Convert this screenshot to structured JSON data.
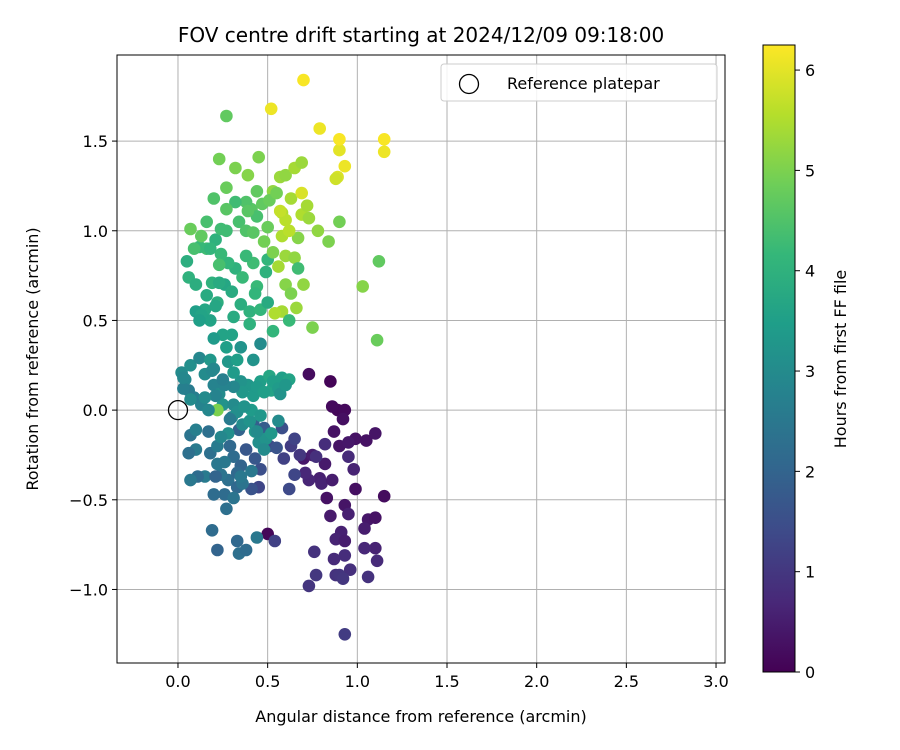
{
  "chart_data": {
    "type": "scatter",
    "title": "FOV centre drift starting at 2024/12/09 09:18:00",
    "xlabel": "Angular distance from reference (arcmin)",
    "ylabel": "Rotation from reference (arcmin)",
    "xlim": [
      -0.34,
      3.05
    ],
    "ylim": [
      -1.41,
      1.98
    ],
    "xticks": [
      0.0,
      0.5,
      1.0,
      1.5,
      2.0,
      2.5,
      3.0
    ],
    "xtick_labels": [
      "0.0",
      "0.5",
      "1.0",
      "1.5",
      "2.0",
      "2.5",
      "3.0"
    ],
    "yticks": [
      -1.0,
      -0.5,
      0.0,
      0.5,
      1.0,
      1.5
    ],
    "ytick_labels": [
      "−1.0",
      "−0.5",
      "0.0",
      "0.5",
      "1.0",
      "1.5"
    ],
    "grid": true,
    "legend": {
      "position": "top-right",
      "entries": [
        "Reference platepar"
      ]
    },
    "reference_point": {
      "name": "Reference platepar",
      "x": 0.0,
      "y": 0.0
    },
    "colorbar": {
      "label": "Hours from first FF file",
      "colormap": "viridis",
      "range": [
        0,
        6.25
      ],
      "ticks": [
        0,
        1,
        2,
        3,
        4,
        5,
        6
      ],
      "tick_labels": [
        "0",
        "1",
        "2",
        "3",
        "4",
        "5",
        "6"
      ],
      "colors": [
        "#440154",
        "#482878",
        "#3e4a89",
        "#31688e",
        "#26828e",
        "#1f9e89",
        "#35b779",
        "#6ece58",
        "#b5de2b",
        "#fde725"
      ]
    },
    "points": [
      [
        0.85,
        0.16,
        0.05
      ],
      [
        0.89,
        0.0,
        0.1
      ],
      [
        0.93,
        0.0,
        0.15
      ],
      [
        0.73,
        0.2,
        0.2
      ],
      [
        0.86,
        0.02,
        0.15
      ],
      [
        0.92,
        -0.05,
        0.25
      ],
      [
        0.99,
        -0.16,
        0.3
      ],
      [
        1.05,
        -0.17,
        0.3
      ],
      [
        1.1,
        -0.13,
        0.35
      ],
      [
        0.87,
        -0.12,
        0.3
      ],
      [
        0.9,
        -0.2,
        0.35
      ],
      [
        0.95,
        -0.18,
        0.4
      ],
      [
        1.15,
        -0.48,
        0.2
      ],
      [
        0.83,
        -0.49,
        0.3
      ],
      [
        0.93,
        -0.53,
        0.35
      ],
      [
        0.99,
        -0.44,
        0.25
      ],
      [
        1.06,
        -0.61,
        0.4
      ],
      [
        1.1,
        -0.6,
        0.3
      ],
      [
        0.85,
        -0.59,
        0.45
      ],
      [
        1.04,
        -0.66,
        0.5
      ],
      [
        0.91,
        -0.68,
        0.55
      ],
      [
        0.88,
        -0.72,
        0.6
      ],
      [
        0.93,
        -0.73,
        0.5
      ],
      [
        0.95,
        -0.58,
        0.55
      ],
      [
        1.1,
        -0.77,
        0.6
      ],
      [
        1.04,
        -0.77,
        0.7
      ],
      [
        1.11,
        -0.84,
        0.75
      ],
      [
        0.93,
        -0.81,
        0.8
      ],
      [
        0.87,
        -0.83,
        0.75
      ],
      [
        0.96,
        -0.89,
        0.85
      ],
      [
        0.88,
        -0.92,
        0.9
      ],
      [
        0.9,
        -0.92,
        0.95
      ],
      [
        1.06,
        -0.93,
        0.9
      ],
      [
        0.92,
        -0.94,
        1.0
      ],
      [
        0.77,
        -0.92,
        1.0
      ],
      [
        0.73,
        -0.98,
        0.95
      ],
      [
        0.76,
        -0.79,
        0.9
      ],
      [
        0.93,
        -1.25,
        1.1
      ],
      [
        0.7,
        -0.27,
        0.4
      ],
      [
        0.75,
        -0.25,
        0.5
      ],
      [
        0.82,
        -0.3,
        0.45
      ],
      [
        0.79,
        -0.38,
        0.55
      ],
      [
        0.8,
        -0.41,
        0.6
      ],
      [
        0.86,
        -0.39,
        0.5
      ],
      [
        0.73,
        -0.39,
        0.65
      ],
      [
        0.71,
        -0.35,
        0.7
      ],
      [
        0.95,
        -0.26,
        0.75
      ],
      [
        0.98,
        -0.33,
        0.6
      ],
      [
        0.82,
        -0.19,
        0.8
      ],
      [
        0.77,
        -0.26,
        0.85
      ],
      [
        0.5,
        -0.69,
        0.1
      ],
      [
        0.54,
        -0.73,
        1.2
      ],
      [
        0.45,
        -0.43,
        1.3
      ],
      [
        0.62,
        -0.44,
        1.4
      ],
      [
        0.65,
        -0.36,
        1.3
      ],
      [
        0.59,
        -0.27,
        1.2
      ],
      [
        0.63,
        -0.2,
        1.1
      ],
      [
        0.68,
        -0.25,
        1.0
      ],
      [
        0.65,
        -0.16,
        1.25
      ],
      [
        0.58,
        -0.1,
        1.5
      ],
      [
        0.51,
        -0.2,
        1.4
      ],
      [
        0.55,
        -0.21,
        1.6
      ],
      [
        0.46,
        -0.33,
        1.5
      ],
      [
        0.41,
        -0.44,
        1.6
      ],
      [
        0.43,
        -0.27,
        1.7
      ],
      [
        0.48,
        -0.1,
        1.8
      ],
      [
        0.42,
        -0.07,
        1.9
      ],
      [
        0.34,
        -0.11,
        2.0
      ],
      [
        0.38,
        -0.22,
        1.7
      ],
      [
        0.29,
        -0.2,
        2.1
      ],
      [
        0.31,
        -0.26,
        2.2
      ],
      [
        0.35,
        -0.31,
        2.0
      ],
      [
        0.28,
        -0.39,
        2.3
      ],
      [
        0.26,
        -0.47,
        2.2
      ],
      [
        0.33,
        -0.43,
        2.1
      ],
      [
        0.31,
        -0.49,
        2.4
      ],
      [
        0.27,
        -0.55,
        2.3
      ],
      [
        0.2,
        -0.47,
        2.2
      ],
      [
        0.24,
        -0.36,
        2.4
      ],
      [
        0.22,
        -0.3,
        2.5
      ],
      [
        0.18,
        -0.24,
        2.3
      ],
      [
        0.15,
        -0.37,
        2.6
      ],
      [
        0.11,
        -0.37,
        2.2
      ],
      [
        0.07,
        -0.39,
        2.5
      ],
      [
        0.1,
        -0.22,
        2.6
      ],
      [
        0.07,
        -0.14,
        2.4
      ],
      [
        0.1,
        -0.11,
        2.7
      ],
      [
        0.13,
        0.03,
        2.8
      ],
      [
        0.09,
        0.07,
        2.7
      ],
      [
        0.06,
        0.11,
        2.6
      ],
      [
        0.04,
        0.17,
        2.9
      ],
      [
        0.02,
        0.21,
        3.0
      ],
      [
        0.07,
        0.25,
        3.1
      ],
      [
        0.12,
        0.29,
        2.9
      ],
      [
        0.15,
        0.2,
        3.0
      ],
      [
        0.2,
        0.14,
        2.8
      ],
      [
        0.23,
        0.09,
        3.0
      ],
      [
        0.25,
        0.03,
        3.2
      ],
      [
        0.3,
        -0.04,
        2.9
      ],
      [
        0.31,
        0.03,
        3.0
      ],
      [
        0.33,
        -0.01,
        3.1
      ],
      [
        0.36,
        -0.08,
        3.0
      ],
      [
        0.4,
        -0.06,
        3.2
      ],
      [
        0.43,
        -0.12,
        3.3
      ],
      [
        0.45,
        -0.18,
        3.1
      ],
      [
        0.49,
        -0.16,
        3.2
      ],
      [
        0.52,
        -0.13,
        3.3
      ],
      [
        0.56,
        -0.06,
        3.0
      ],
      [
        0.39,
        0.14,
        3.3
      ],
      [
        0.42,
        0.08,
        3.4
      ],
      [
        0.46,
        0.16,
        3.5
      ],
      [
        0.52,
        0.11,
        3.6
      ],
      [
        0.55,
        0.15,
        3.4
      ],
      [
        0.58,
        0.18,
        3.5
      ],
      [
        0.62,
        0.17,
        3.6
      ],
      [
        0.35,
        0.16,
        3.2
      ],
      [
        0.31,
        0.21,
        3.4
      ],
      [
        0.28,
        0.27,
        3.3
      ],
      [
        0.27,
        0.35,
        3.5
      ],
      [
        0.25,
        0.42,
        3.6
      ],
      [
        0.2,
        0.4,
        3.4
      ],
      [
        0.18,
        0.5,
        3.6
      ],
      [
        0.15,
        0.56,
        3.7
      ],
      [
        0.1,
        0.55,
        3.5
      ],
      [
        0.16,
        0.64,
        3.8
      ],
      [
        0.22,
        0.6,
        3.9
      ],
      [
        0.26,
        0.7,
        3.7
      ],
      [
        0.3,
        0.66,
        3.8
      ],
      [
        0.35,
        0.59,
        3.9
      ],
      [
        0.4,
        0.55,
        4.0
      ],
      [
        0.46,
        0.56,
        4.1
      ],
      [
        0.44,
        0.69,
        4.2
      ],
      [
        0.49,
        0.77,
        4.0
      ],
      [
        0.5,
        0.84,
        4.1
      ],
      [
        0.42,
        0.82,
        4.3
      ],
      [
        0.38,
        0.86,
        4.2
      ],
      [
        0.32,
        0.79,
        4.0
      ],
      [
        0.28,
        0.82,
        4.1
      ],
      [
        0.24,
        0.87,
        4.2
      ],
      [
        0.21,
        0.95,
        4.0
      ],
      [
        0.16,
        0.9,
        4.3
      ],
      [
        0.12,
        0.91,
        4.2
      ],
      [
        0.09,
        0.9,
        4.4
      ],
      [
        0.06,
        0.74,
        4.0
      ],
      [
        0.05,
        0.83,
        3.9
      ],
      [
        0.27,
        1.0,
        4.3
      ],
      [
        0.34,
        1.05,
        4.4
      ],
      [
        0.38,
        1.0,
        4.5
      ],
      [
        0.41,
        1.12,
        4.6
      ],
      [
        0.44,
        1.08,
        4.4
      ],
      [
        0.47,
        1.15,
        4.7
      ],
      [
        0.38,
        1.16,
        4.5
      ],
      [
        0.32,
        1.16,
        4.3
      ],
      [
        0.27,
        1.12,
        4.6
      ],
      [
        0.2,
        1.18,
        4.5
      ],
      [
        0.16,
        1.05,
        4.4
      ],
      [
        0.13,
        0.97,
        4.7
      ],
      [
        0.07,
        1.01,
        4.8
      ],
      [
        0.23,
        1.4,
        4.9
      ],
      [
        0.32,
        1.35,
        5.0
      ],
      [
        0.39,
        1.31,
        5.1
      ],
      [
        0.45,
        1.41,
        5.0
      ],
      [
        0.27,
        1.24,
        4.8
      ],
      [
        0.27,
        1.64,
        4.7
      ],
      [
        0.53,
        1.22,
        5.2
      ],
      [
        0.57,
        1.3,
        5.3
      ],
      [
        0.6,
        1.31,
        5.2
      ],
      [
        0.65,
        1.35,
        5.4
      ],
      [
        0.69,
        1.38,
        5.3
      ],
      [
        0.63,
        1.18,
        5.4
      ],
      [
        0.58,
        1.1,
        5.5
      ],
      [
        0.6,
        1.06,
        5.6
      ],
      [
        0.69,
        1.09,
        5.5
      ],
      [
        0.72,
        1.14,
        5.4
      ],
      [
        0.73,
        1.07,
        5.3
      ],
      [
        0.78,
        1.0,
        5.2
      ],
      [
        0.67,
        0.96,
        5.1
      ],
      [
        0.58,
        0.97,
        5.5
      ],
      [
        0.6,
        0.86,
        5.3
      ],
      [
        0.65,
        0.85,
        5.2
      ],
      [
        0.56,
        0.8,
        5.4
      ],
      [
        0.53,
        0.88,
        5.0
      ],
      [
        0.48,
        0.94,
        4.9
      ],
      [
        0.42,
        0.99,
        4.6
      ],
      [
        0.5,
        1.02,
        4.8
      ],
      [
        0.6,
        0.7,
        5.1
      ],
      [
        0.63,
        0.65,
        5.0
      ],
      [
        0.7,
        0.7,
        5.2
      ],
      [
        0.66,
        0.57,
        5.3
      ],
      [
        0.58,
        0.55,
        5.4
      ],
      [
        0.54,
        0.54,
        5.5
      ],
      [
        0.75,
        0.46,
        5.0
      ],
      [
        0.84,
        0.94,
        5.0
      ],
      [
        0.9,
        1.05,
        4.9
      ],
      [
        1.03,
        0.69,
        5.1
      ],
      [
        1.12,
        0.83,
        4.7
      ],
      [
        1.11,
        0.39,
        4.8
      ],
      [
        0.89,
        1.3,
        5.9
      ],
      [
        0.9,
        1.45,
        6.0
      ],
      [
        0.93,
        1.36,
        6.1
      ],
      [
        0.9,
        1.51,
        6.2
      ],
      [
        0.79,
        1.57,
        6.1
      ],
      [
        0.7,
        1.84,
        6.2
      ],
      [
        0.52,
        1.68,
        6.1
      ],
      [
        0.69,
        1.21,
        5.9
      ],
      [
        1.15,
        1.51,
        6.2
      ],
      [
        1.15,
        1.44,
        6.1
      ],
      [
        0.88,
        1.29,
        5.8
      ],
      [
        0.57,
        1.11,
        5.7
      ],
      [
        0.62,
        1.0,
        5.6
      ],
      [
        0.67,
        0.79,
        4.3
      ],
      [
        0.62,
        0.5,
        4.2
      ],
      [
        0.53,
        0.44,
        4.1
      ],
      [
        0.5,
        0.6,
        3.8
      ],
      [
        0.46,
        0.37,
        3.0
      ],
      [
        0.42,
        0.28,
        3.2
      ],
      [
        0.44,
        0.13,
        3.4
      ],
      [
        0.48,
        0.1,
        3.5
      ],
      [
        0.51,
        0.19,
        3.7
      ],
      [
        0.36,
        0.1,
        3.3
      ],
      [
        0.31,
        0.13,
        2.9
      ],
      [
        0.26,
        0.14,
        2.8
      ],
      [
        0.19,
        0.22,
        2.9
      ],
      [
        0.03,
        0.12,
        2.7
      ],
      [
        0.18,
        0.28,
        3.3
      ],
      [
        0.3,
        0.42,
        3.6
      ],
      [
        0.35,
        0.35,
        3.2
      ],
      [
        0.33,
        0.28,
        3.5
      ],
      [
        0.4,
        0.48,
        4.0
      ],
      [
        0.19,
        0.71,
        4.0
      ],
      [
        0.23,
        0.71,
        3.8
      ],
      [
        0.21,
        0.58,
        3.7
      ],
      [
        0.31,
        0.52,
        3.8
      ],
      [
        0.36,
        0.74,
        4.2
      ],
      [
        0.43,
        0.65,
        4.1
      ],
      [
        0.44,
        1.22,
        4.7
      ],
      [
        0.51,
        1.17,
        4.8
      ],
      [
        0.55,
        1.21,
        4.9
      ],
      [
        0.39,
        1.11,
        4.6
      ],
      [
        0.23,
        0.81,
        4.4
      ],
      [
        0.24,
        1.01,
        4.3
      ],
      [
        0.18,
        0.9,
        4.1
      ],
      [
        0.1,
        0.7,
        3.9
      ],
      [
        0.13,
        0.53,
        3.6
      ],
      [
        0.12,
        0.5,
        3.5
      ],
      [
        0.2,
        0.23,
        2.9
      ],
      [
        0.22,
        0.0,
        5.0
      ],
      [
        0.21,
        0.08,
        2.8
      ],
      [
        0.17,
        0.0,
        2.9
      ],
      [
        0.15,
        0.07,
        3.0
      ],
      [
        0.21,
        -0.37,
        2.0
      ],
      [
        0.19,
        -0.67,
        2.2
      ],
      [
        0.22,
        -0.78,
        2.0
      ],
      [
        0.33,
        -0.73,
        2.1
      ],
      [
        0.34,
        -0.8,
        2.3
      ],
      [
        0.38,
        -0.78,
        2.2
      ],
      [
        0.44,
        -0.71,
        2.5
      ],
      [
        0.36,
        -0.41,
        2.4
      ],
      [
        0.41,
        -0.34,
        2.5
      ],
      [
        0.44,
        -0.12,
        3.0
      ],
      [
        0.33,
        -0.35,
        2.1
      ],
      [
        0.26,
        -0.29,
        2.5
      ],
      [
        0.22,
        -0.2,
        2.6
      ],
      [
        0.17,
        -0.12,
        2.3
      ],
      [
        0.41,
        0.0,
        3.4
      ],
      [
        0.28,
        -0.13,
        3.1
      ],
      [
        0.24,
        -0.15,
        2.9
      ],
      [
        0.29,
        -0.05,
        2.6
      ],
      [
        0.37,
        0.02,
        3.2
      ],
      [
        0.46,
        -0.03,
        3.3
      ],
      [
        0.53,
        0.16,
        3.5
      ],
      [
        0.56,
        0.12,
        3.4
      ],
      [
        0.48,
        -0.22,
        3.0
      ],
      [
        0.57,
        0.09,
        3.2
      ],
      [
        0.6,
        0.14,
        3.3
      ],
      [
        0.35,
        -0.37,
        2.5
      ],
      [
        0.06,
        -0.24,
        2.3
      ],
      [
        0.03,
        0.18,
        2.9
      ],
      [
        0.07,
        0.06,
        3.0
      ],
      [
        0.25,
        0.17,
        2.7
      ]
    ]
  }
}
